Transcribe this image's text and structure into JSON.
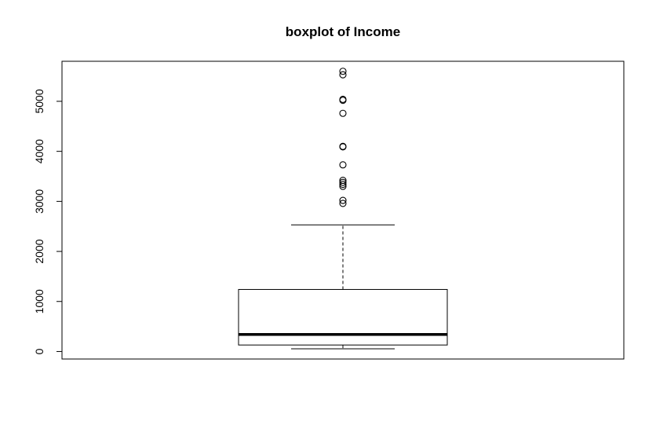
{
  "chart_data": {
    "type": "boxplot",
    "title": "boxplot of Income",
    "xlabel": "",
    "ylabel": "",
    "ylim": [
      -150,
      5800
    ],
    "y_ticks": [
      0,
      1000,
      2000,
      3000,
      4000,
      5000
    ],
    "y_tick_labels": [
      "0",
      "1000",
      "2000",
      "3000",
      "4000",
      "5000"
    ],
    "grid": false,
    "legend": "none",
    "box": {
      "whisker_low": 55,
      "q1": 130,
      "median": 340,
      "q3": 1240,
      "whisker_high": 2530
    },
    "outliers": [
      2960,
      3020,
      3300,
      3340,
      3380,
      3420,
      3730,
      4090,
      4100,
      4760,
      5020,
      5040,
      5530,
      5600
    ],
    "colors": {
      "stroke": "#000000",
      "background": "#ffffff"
    }
  }
}
